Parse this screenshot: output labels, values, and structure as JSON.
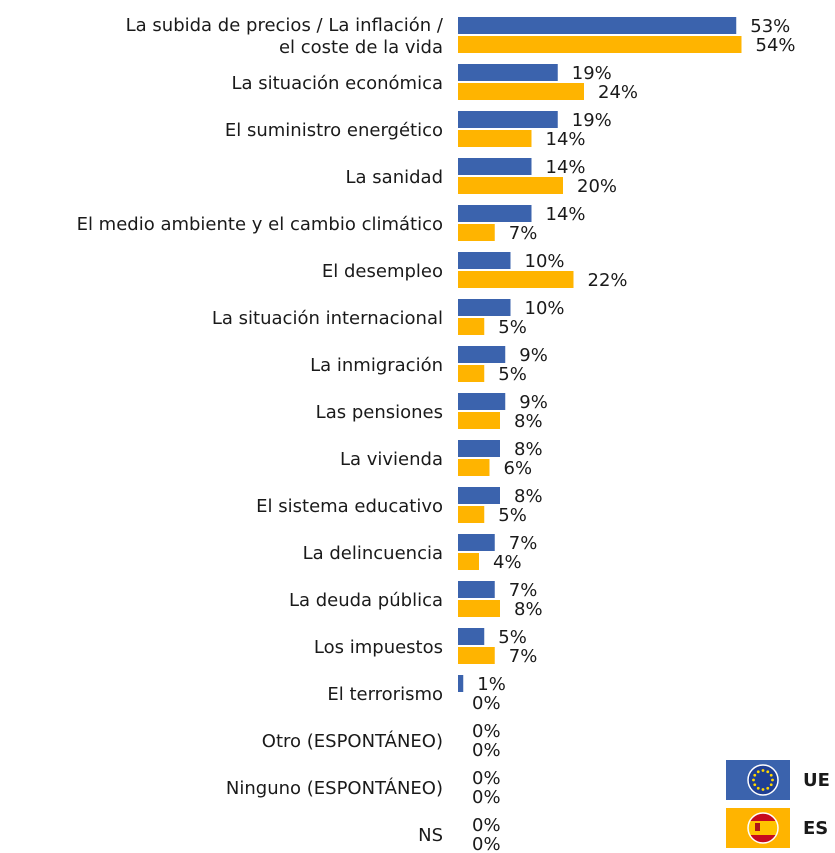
{
  "chart_data": {
    "type": "bar",
    "orientation": "horizontal",
    "categories": [
      [
        "La subida de precios / La inflación /",
        "el coste de la vida"
      ],
      "La situación económica",
      "El suministro energético",
      "La sanidad",
      "El medio ambiente y el cambio climático",
      "El desempleo",
      "La situación internacional",
      "La inmigración",
      "Las pensiones",
      "La vivienda",
      "El sistema educativo",
      "La delincuencia",
      "La deuda pública",
      "Los impuestos",
      "El terrorismo",
      "Otro (ESPONTÁNEO)",
      "Ninguno (ESPONTÁNEO)",
      "NS"
    ],
    "series": [
      {
        "name": "UE",
        "color": "#3b63ad",
        "values": [
          53,
          19,
          19,
          14,
          14,
          10,
          10,
          9,
          9,
          8,
          8,
          7,
          7,
          5,
          1,
          0,
          0,
          0
        ],
        "value_labels": [
          "53%",
          "19%",
          "19%",
          "14%",
          "14%",
          "10%",
          "10%",
          "9%",
          "9%",
          "8%",
          "8%",
          "7%",
          "7%",
          "5%",
          "1%",
          "0%",
          "0%",
          "0%"
        ]
      },
      {
        "name": "ES",
        "color": "#ffb400",
        "values": [
          54,
          24,
          14,
          20,
          7,
          22,
          5,
          5,
          8,
          6,
          5,
          4,
          8,
          7,
          0,
          0,
          0,
          0
        ],
        "value_labels": [
          "54%",
          "24%",
          "14%",
          "20%",
          "7%",
          "22%",
          "5%",
          "5%",
          "8%",
          "6%",
          "5%",
          "4%",
          "8%",
          "7%",
          "0%",
          "0%",
          "0%",
          "0%"
        ]
      }
    ],
    "legend": "bottom-right"
  }
}
